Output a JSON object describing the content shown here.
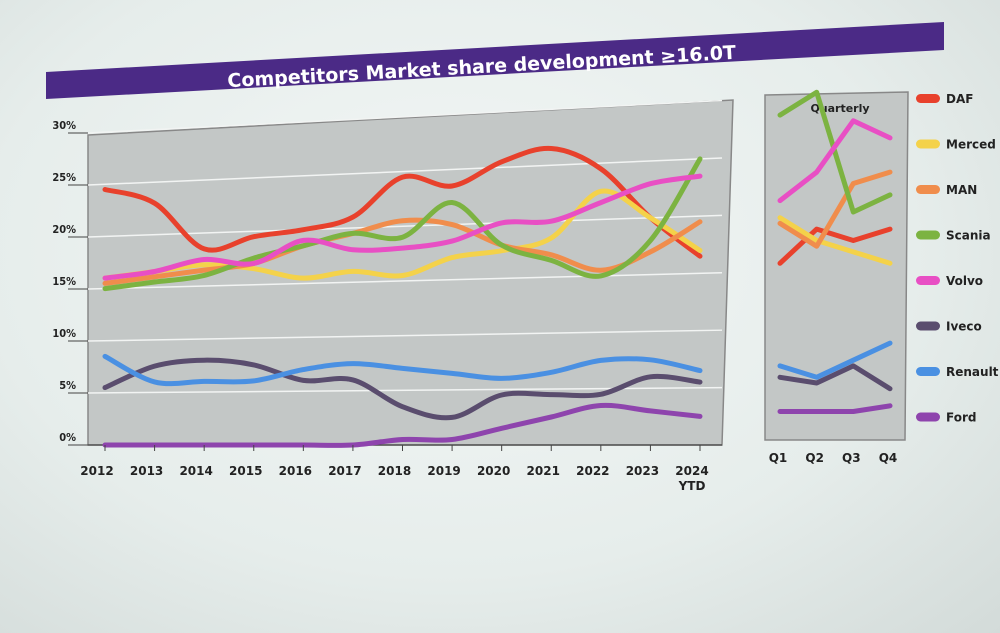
{
  "title": "Competitors Market share development ≥16.0T",
  "colors": {
    "title_bar": "#4b2a86",
    "plot_bg": "#c3c7c6",
    "grid": "#f2f4f3"
  },
  "chart_data": [
    {
      "type": "line",
      "name": "annual",
      "x": [
        "2012",
        "2013",
        "2014",
        "2015",
        "2016",
        "2017",
        "2018",
        "2019",
        "2020",
        "2021",
        "2022",
        "2023",
        "2024"
      ],
      "x_tick_labels": [
        "2012",
        "2013",
        "2014",
        "2015",
        "2016",
        "2017",
        "2018",
        "2019",
        "2020",
        "2021",
        "2022",
        "2023",
        "2024"
      ],
      "x_tick_sublabel": "YTD",
      "y_ticks": [
        "0%",
        "5%",
        "10%",
        "15%",
        "20%",
        "25%",
        "30%"
      ],
      "ylim": [
        0,
        30
      ],
      "grid": true,
      "series": [
        {
          "name": "DAF",
          "color": "#e8412c",
          "values": [
            24.5,
            23.0,
            18.5,
            19.5,
            20.0,
            21.0,
            24.5,
            23.5,
            25.5,
            26.5,
            24.5,
            20.0,
            16.5
          ]
        },
        {
          "name": "Mercedes",
          "color": "#f4d24a",
          "values": [
            16.0,
            16.5,
            17.0,
            16.5,
            15.5,
            16.0,
            15.5,
            17.0,
            17.5,
            18.5,
            22.5,
            20.0,
            17.0
          ]
        },
        {
          "name": "MAN",
          "color": "#f08d4c",
          "values": [
            15.5,
            16.0,
            16.5,
            17.0,
            18.5,
            19.5,
            20.5,
            20.0,
            18.0,
            17.0,
            15.5,
            17.0,
            19.5
          ]
        },
        {
          "name": "Scania",
          "color": "#7cb341",
          "values": [
            15.0,
            15.5,
            16.0,
            17.5,
            18.5,
            19.5,
            19.0,
            22.0,
            18.0,
            16.5,
            15.0,
            18.0,
            25.0
          ]
        },
        {
          "name": "Volvo",
          "color": "#e84fc4",
          "values": [
            16.0,
            16.5,
            17.5,
            17.0,
            19.0,
            18.0,
            18.0,
            18.5,
            20.0,
            20.0,
            21.5,
            23.0,
            23.5
          ]
        },
        {
          "name": "Iveco",
          "color": "#5a4d6e",
          "values": [
            5.5,
            7.5,
            8.0,
            7.5,
            6.0,
            6.0,
            3.5,
            2.5,
            4.5,
            4.5,
            4.5,
            6.0,
            5.5
          ]
        },
        {
          "name": "Renault",
          "color": "#4a90e2",
          "values": [
            8.5,
            6.0,
            6.0,
            6.0,
            7.0,
            7.5,
            7.0,
            6.5,
            6.0,
            6.5,
            7.5,
            7.5,
            6.5
          ]
        },
        {
          "name": "Ford",
          "color": "#8e44ad",
          "values": [
            0.0,
            0.0,
            0.0,
            0.0,
            0.0,
            0.0,
            0.5,
            0.5,
            1.5,
            2.5,
            3.5,
            3.0,
            2.5
          ]
        }
      ]
    },
    {
      "type": "line",
      "name": "quarterly",
      "title": "Quarterly",
      "x": [
        "Q1",
        "Q2",
        "Q3",
        "Q4"
      ],
      "ylim": [
        0,
        30
      ],
      "grid": false,
      "series": [
        {
          "name": "DAF",
          "values": [
            15.5,
            18.5,
            17.5,
            18.5
          ]
        },
        {
          "name": "Mercedes",
          "values": [
            19.5,
            17.5,
            16.5,
            15.5
          ]
        },
        {
          "name": "MAN",
          "values": [
            19.0,
            17.0,
            22.5,
            23.5
          ]
        },
        {
          "name": "Scania",
          "values": [
            28.5,
            30.5,
            20.0,
            21.5
          ]
        },
        {
          "name": "Volvo",
          "values": [
            21.0,
            23.5,
            28.0,
            26.5
          ]
        },
        {
          "name": "Iveco",
          "values": [
            5.5,
            5.0,
            6.5,
            4.5
          ]
        },
        {
          "name": "Renault",
          "values": [
            6.5,
            5.5,
            7.0,
            8.5
          ]
        },
        {
          "name": "Ford",
          "values": [
            2.5,
            2.5,
            2.5,
            3.0
          ]
        }
      ]
    }
  ],
  "legend": {
    "placement": "right",
    "items": [
      {
        "label": "DAF",
        "color": "#e8412c"
      },
      {
        "label": "Merced",
        "color": "#f4d24a"
      },
      {
        "label": "MAN",
        "color": "#f08d4c"
      },
      {
        "label": "Scania",
        "color": "#7cb341"
      },
      {
        "label": "Volvo",
        "color": "#e84fc4"
      },
      {
        "label": "Iveco",
        "color": "#5a4d6e"
      },
      {
        "label": "Renault",
        "color": "#4a90e2"
      },
      {
        "label": "Ford",
        "color": "#8e44ad"
      }
    ]
  }
}
